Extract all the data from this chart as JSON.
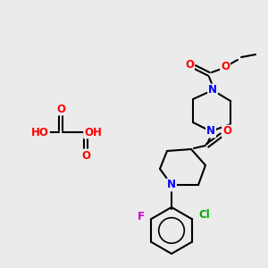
{
  "bg_color": "#ebebeb",
  "bond_color": "#000000",
  "bond_width": 1.5,
  "atom_colors": {
    "N": "#0000ff",
    "O": "#ff0000",
    "F": "#cc00cc",
    "Cl": "#00aa00",
    "C": "#000000",
    "H": "#4a8a8a"
  },
  "font_size": 8.5
}
